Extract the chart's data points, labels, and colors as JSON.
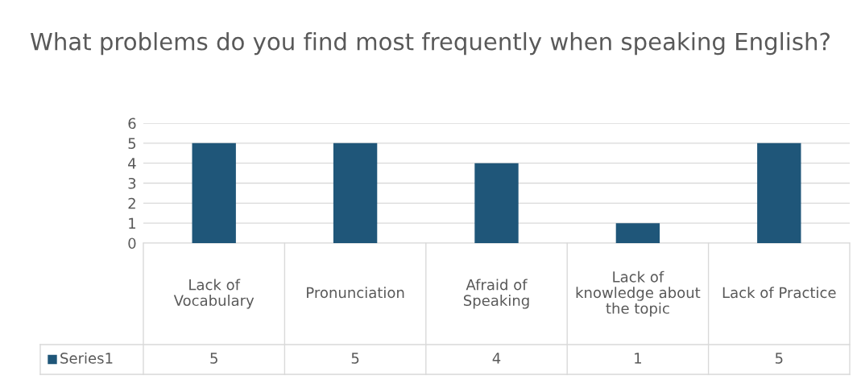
{
  "chart_data": {
    "type": "bar",
    "title": "What problems do you find most frequently when speaking English?",
    "categories": [
      "Lack of Vocabulary",
      "Pronunciation",
      "Afraid of Speaking",
      "Lack of knowledge about the topic",
      "Lack of Practice"
    ],
    "series": [
      {
        "name": "Series1",
        "color": "#1f5679",
        "values": [
          5,
          5,
          4,
          1,
          5
        ]
      }
    ],
    "ylim": [
      0,
      6
    ],
    "yticks": [
      0,
      1,
      2,
      3,
      4,
      5,
      6
    ],
    "grid": "y",
    "data_labels": true
  }
}
